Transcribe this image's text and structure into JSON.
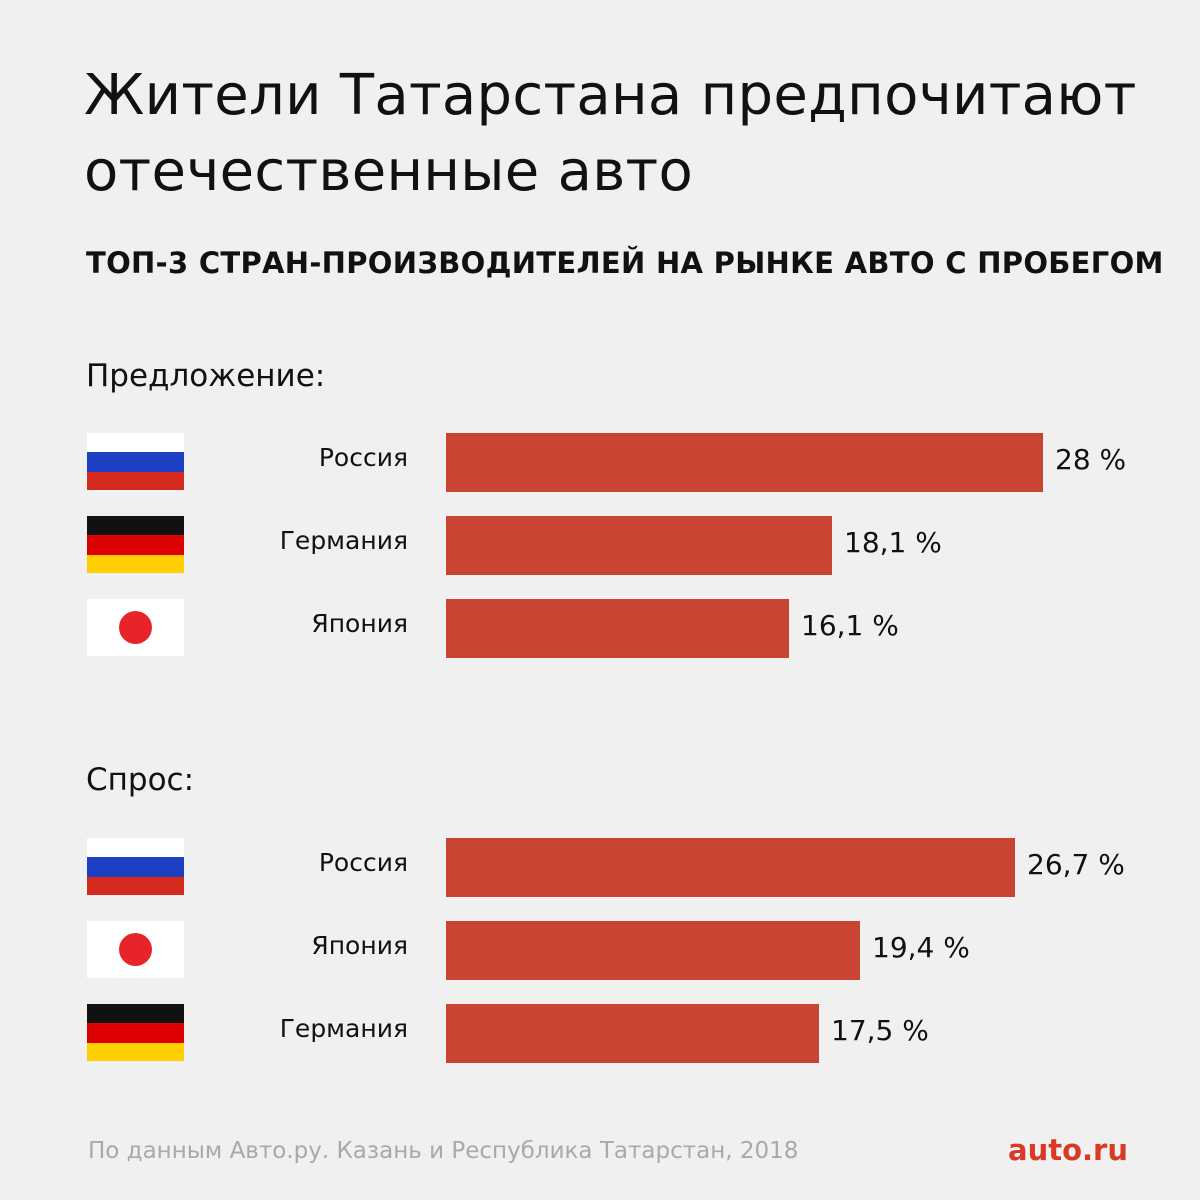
{
  "title": "Жители Татарстана предпочитают отечественные авто",
  "subtitle": "ТОП-3 СТРАН-ПРОИЗВОДИТЕЛЕЙ НА РЫНКЕ АВТО С ПРОБЕГОМ",
  "source": "По данным Авто.ру. Казань и Республика Татарстан, 2018",
  "logo": "auto.ru",
  "colors": {
    "bar": "#c94533",
    "background": "#f0f0f0",
    "brand": "#d93a26"
  },
  "chart_data": [
    {
      "type": "bar",
      "orientation": "horizontal",
      "title": "Предложение:",
      "unit": "%",
      "xlim": [
        0,
        28
      ],
      "categories": [
        "Россия",
        "Германия",
        "Япония"
      ],
      "flags": [
        "russia-flag-icon",
        "germany-flag-icon",
        "japan-flag-icon"
      ],
      "values": [
        28,
        18.1,
        16.1
      ],
      "labels": [
        "28 %",
        "18,1 %",
        "16,1 %"
      ]
    },
    {
      "type": "bar",
      "orientation": "horizontal",
      "title": "Спрос:",
      "unit": "%",
      "xlim": [
        0,
        28
      ],
      "categories": [
        "Россия",
        "Япония",
        "Германия"
      ],
      "flags": [
        "russia-flag-icon",
        "japan-flag-icon",
        "germany-flag-icon"
      ],
      "values": [
        26.7,
        19.4,
        17.5
      ],
      "labels": [
        "26,7 %",
        "19,4 %",
        "17,5 %"
      ]
    }
  ]
}
